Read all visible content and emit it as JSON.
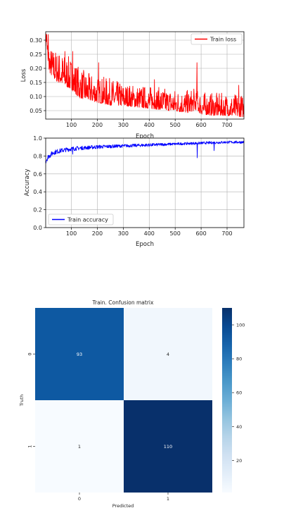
{
  "chart_data": [
    {
      "type": "line",
      "xlabel": "Epoch",
      "ylabel": "Loss",
      "xlim": [
        1,
        765
      ],
      "ylim": [
        0.02,
        0.33
      ],
      "x_ticks": [
        100,
        200,
        300,
        400,
        500,
        600,
        700
      ],
      "y_ticks": [
        0.05,
        0.1,
        0.15,
        0.2,
        0.25,
        0.3
      ],
      "y_tick_labels": [
        "0.05",
        "0.10",
        "0.15",
        "0.20",
        "0.25",
        "0.30"
      ],
      "grid": true,
      "legend_position": "top-right",
      "series": [
        {
          "name": "Train loss",
          "color": "#ff0000",
          "x": [
            1,
            5,
            10,
            20,
            40,
            60,
            80,
            100,
            130,
            160,
            200,
            250,
            300,
            350,
            400,
            450,
            500,
            550,
            580,
            600,
            650,
            700,
            765
          ],
          "values": [
            0.29,
            0.31,
            0.22,
            0.2,
            0.18,
            0.17,
            0.16,
            0.15,
            0.12,
            0.11,
            0.1,
            0.09,
            0.085,
            0.08,
            0.075,
            0.07,
            0.065,
            0.06,
            0.07,
            0.055,
            0.05,
            0.05,
            0.045
          ],
          "noise_amplitude": [
            0.03,
            0.02,
            0.06,
            0.06,
            0.07,
            0.07,
            0.07,
            0.07,
            0.07,
            0.06,
            0.06,
            0.06,
            0.05,
            0.05,
            0.05,
            0.05,
            0.05,
            0.05,
            0.05,
            0.05,
            0.05,
            0.05,
            0.05
          ],
          "spikes": [
            [
              11,
              0.32
            ],
            [
              75,
              0.26
            ],
            [
              105,
              0.26
            ],
            [
              205,
              0.22
            ],
            [
              420,
              0.16
            ],
            [
              584,
              0.22
            ],
            [
              745,
              0.14
            ]
          ]
        }
      ]
    },
    {
      "type": "line",
      "xlabel": "Epoch",
      "ylabel": "Accuracy",
      "xlim": [
        1,
        765
      ],
      "ylim": [
        0.0,
        1.0
      ],
      "x_ticks": [
        100,
        200,
        300,
        400,
        500,
        600,
        700
      ],
      "y_ticks": [
        0.0,
        0.2,
        0.4,
        0.6,
        0.8,
        1.0
      ],
      "y_tick_labels": [
        "0.0",
        "0.2",
        "0.4",
        "0.6",
        "0.8",
        "1.0"
      ],
      "grid": true,
      "legend_position": "bottom-left",
      "series": [
        {
          "name": "Train accuracy",
          "color": "#0000ff",
          "x": [
            1,
            10,
            30,
            60,
            100,
            150,
            200,
            300,
            400,
            500,
            600,
            700,
            765
          ],
          "values": [
            0.76,
            0.8,
            0.85,
            0.87,
            0.89,
            0.9,
            0.91,
            0.92,
            0.93,
            0.94,
            0.95,
            0.96,
            0.96
          ],
          "noise_amplitude": [
            0.05,
            0.04,
            0.04,
            0.035,
            0.035,
            0.03,
            0.03,
            0.025,
            0.025,
            0.02,
            0.02,
            0.02,
            0.02
          ],
          "dips": [
            [
              585,
              0.78
            ],
            [
              105,
              0.82
            ],
            [
              650,
              0.86
            ]
          ]
        }
      ]
    },
    {
      "type": "heatmap",
      "title": "Train. Confusion matrix",
      "xlabel": "Predicted",
      "ylabel": "Truth",
      "x_categories": [
        "0",
        "1"
      ],
      "y_categories": [
        "0",
        "1"
      ],
      "values": [
        [
          93,
          4
        ],
        [
          1,
          110
        ]
      ],
      "vmin": 1,
      "vmax": 110,
      "colormap": "Blues",
      "colorbar_ticks": [
        20,
        40,
        60,
        80,
        100
      ],
      "colorbar_tick_labels": [
        "20",
        "40",
        "60",
        "80",
        "100"
      ]
    }
  ]
}
